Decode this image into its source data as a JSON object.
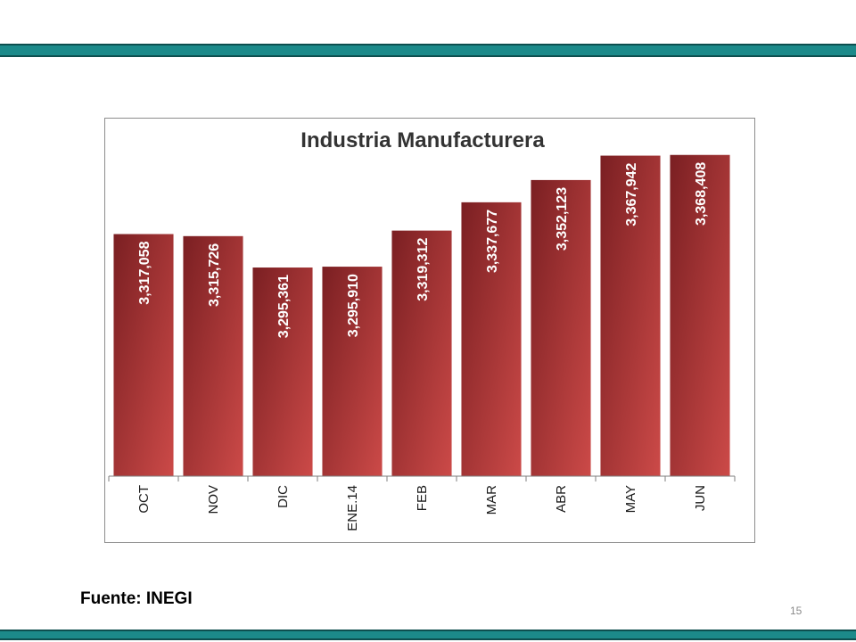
{
  "slide": {
    "source": "Fuente: INEGI",
    "page_number": "15",
    "accent_color": "#1c8a8a"
  },
  "chart_data": {
    "type": "bar",
    "title": "Industria Manufacturera",
    "categories": [
      "OCT",
      "NOV",
      "DIC",
      "ENE.14",
      "FEB",
      "MAR",
      "ABR",
      "MAY",
      "JUN"
    ],
    "values": [
      3317058,
      3315726,
      3295361,
      3295910,
      3319312,
      3337677,
      3352123,
      3367942,
      3368408
    ],
    "value_labels": [
      "3,317,058",
      "3,315,726",
      "3,295,361",
      "3,295,910",
      "3,319,312",
      "3,337,677",
      "3,352,123",
      "3,367,942",
      "3,368,408"
    ],
    "xlabel": "",
    "ylabel": "",
    "ylim": [
      3160000,
      3370000
    ],
    "grid": false,
    "bar_color": "#b23a3a"
  }
}
